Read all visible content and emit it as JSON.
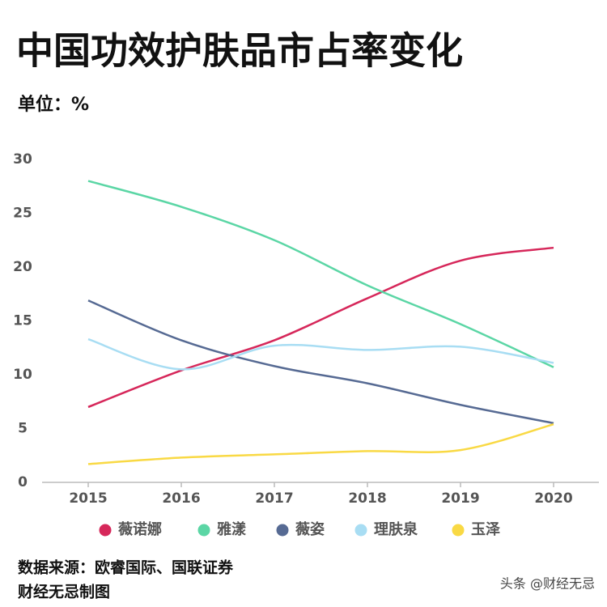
{
  "chart_data": {
    "type": "line",
    "title": "中国功效护肤品市占率变化",
    "subtitle": "单位：%",
    "x": [
      2015,
      2016,
      2017,
      2018,
      2019,
      2020
    ],
    "xlim": [
      2014.5,
      2020.5
    ],
    "xticks": [
      2015,
      2016,
      2017,
      2018,
      2019,
      2020
    ],
    "ylim": [
      0,
      30
    ],
    "yticks": [
      0,
      5,
      10,
      15,
      20,
      25,
      30
    ],
    "series": [
      {
        "name": "薇诺娜",
        "color": "#d6275a",
        "values": [
          7.0,
          10.4,
          13.2,
          17.1,
          20.6,
          21.8
        ]
      },
      {
        "name": "雅漾",
        "color": "#5bd6a5",
        "values": [
          28.0,
          25.6,
          22.5,
          18.3,
          14.7,
          10.7
        ]
      },
      {
        "name": "薇姿",
        "color": "#566a93",
        "values": [
          16.9,
          13.2,
          10.8,
          9.2,
          7.2,
          5.5
        ]
      },
      {
        "name": "理肤泉",
        "color": "#a8ddf3",
        "values": [
          13.3,
          10.5,
          12.7,
          12.3,
          12.6,
          11.1
        ]
      },
      {
        "name": "玉泽",
        "color": "#f9d944",
        "values": [
          1.7,
          2.3,
          2.6,
          2.9,
          3.0,
          5.4
        ]
      }
    ],
    "source": [
      "数据来源：欧睿国际、国联证券",
      "财经无忌制图"
    ],
    "watermark": "头条 @财经无忌"
  }
}
